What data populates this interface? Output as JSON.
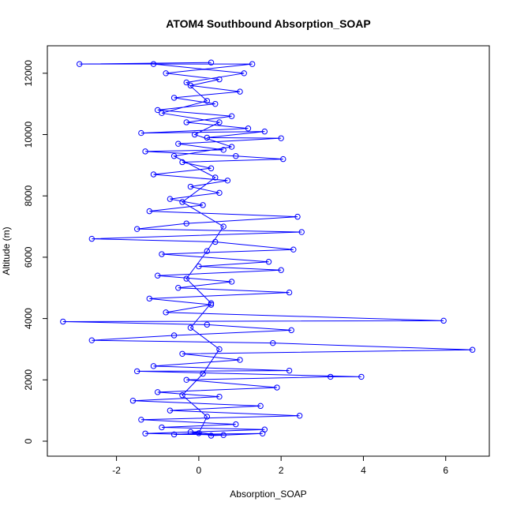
{
  "chart_data": {
    "type": "line",
    "title": "ATOM4 Southbound Absorption_SOAP",
    "x_label": "Absorption_SOAP",
    "y_label": "Altitude (m)",
    "color": "#0000ff",
    "markers": true,
    "xlim": [
      -3.68,
      7.06
    ],
    "ylim": [
      -489,
      12896
    ],
    "xticks": [
      -2,
      0,
      2,
      4,
      6
    ],
    "yticks": [
      0,
      2000,
      4000,
      6000,
      8000,
      10000,
      12000
    ],
    "x": [
      0.3,
      -2.9,
      1.3,
      -0.8,
      0.5,
      -0.2,
      1.0,
      -0.6,
      0.4,
      -1.0,
      0.8,
      -0.3,
      1.2,
      -1.4,
      1.6,
      0.2,
      2.0,
      -0.5,
      0.6,
      -1.3,
      0.9,
      2.05,
      -0.4,
      0.3,
      -1.1,
      0.7,
      -0.2,
      0.5,
      -0.7,
      0.1,
      -1.2,
      2.4,
      -0.3,
      -1.5,
      2.5,
      -2.6,
      0.4,
      2.3,
      -0.9,
      1.7,
      0.0,
      2.0,
      -1.0,
      0.8,
      -0.5,
      2.2,
      -1.2,
      0.3,
      -0.8,
      5.95,
      -3.3,
      0.2,
      2.25,
      -0.6,
      -2.6,
      1.8,
      6.65,
      -0.4,
      1.0,
      -1.1,
      2.2,
      -1.5,
      3.95,
      3.2,
      -0.3,
      1.9,
      -1.0,
      0.5,
      -1.6,
      1.5,
      -0.7,
      2.45,
      -1.4,
      0.9,
      -0.9,
      1.6,
      -1.3,
      0.6,
      -0.2,
      0.3,
      1.55,
      -0.6,
      0.0,
      0.2,
      -0.4,
      0.1,
      0.5,
      -0.2,
      0.3,
      -0.3,
      0.2,
      0.6,
      -0.4,
      0.4,
      -0.6,
      0.8,
      -0.1,
      0.5,
      -0.9,
      0.2,
      -0.3,
      1.1,
      -1.1
    ],
    "values": [
      12350,
      12300,
      12300,
      12000,
      11800,
      11600,
      11400,
      11200,
      11000,
      10800,
      10600,
      10400,
      10200,
      10050,
      10100,
      9900,
      9880,
      9700,
      9500,
      9450,
      9300,
      9200,
      9100,
      8900,
      8700,
      8500,
      8300,
      8100,
      7900,
      7700,
      7500,
      7320,
      7100,
      6920,
      6820,
      6600,
      6500,
      6250,
      6100,
      5850,
      5700,
      5580,
      5400,
      5200,
      5000,
      4850,
      4650,
      4450,
      4200,
      3930,
      3900,
      3800,
      3620,
      3450,
      3290,
      3200,
      2980,
      2850,
      2650,
      2450,
      2300,
      2280,
      2100,
      2100,
      2000,
      1750,
      1600,
      1450,
      1320,
      1150,
      1000,
      830,
      700,
      550,
      450,
      380,
      250,
      200,
      300,
      180,
      250,
      220,
      260,
      800,
      1500,
      2200,
      3000,
      3700,
      4500,
      5300,
      6200,
      7000,
      7800,
      8600,
      9300,
      9600,
      10000,
      10400,
      10700,
      11100,
      11700,
      12000,
      12300
    ]
  }
}
